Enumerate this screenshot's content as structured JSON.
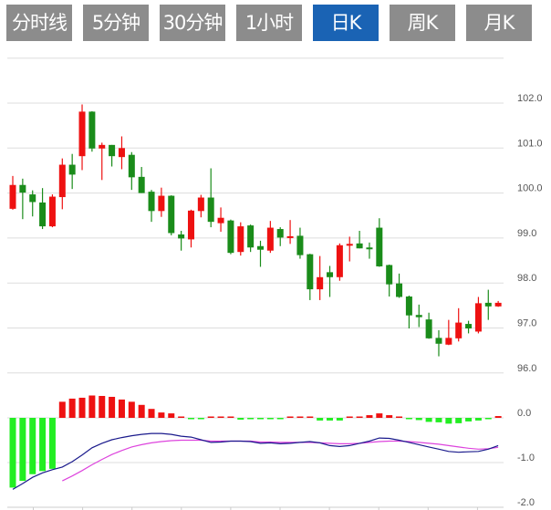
{
  "tabs": [
    {
      "label": "分时线",
      "active": false
    },
    {
      "label": "5分钟",
      "active": false
    },
    {
      "label": "30分钟",
      "active": false
    },
    {
      "label": "1小时",
      "active": false
    },
    {
      "label": "日K",
      "active": true
    },
    {
      "label": "周K",
      "active": false
    },
    {
      "label": "月K",
      "active": false
    }
  ],
  "colors": {
    "up": "#ee1111",
    "down": "#1a8c1a",
    "hist_up": "#ee1111",
    "hist_down": "#22ee22",
    "dif": "#1a1a8c",
    "dea": "#dd44dd",
    "tab": "#8c8c8c",
    "tab_active": "#1a63b4"
  },
  "chart_data": [
    {
      "type": "candlestick",
      "y_ticks": [
        "102.0",
        "101.0",
        "100.0",
        "99.0",
        "98.0",
        "97.0",
        "96.0"
      ],
      "ylim": [
        96,
        103
      ],
      "grid": true,
      "candles": [
        [
          99.65,
          100.18,
          100.38,
          99.63
        ],
        [
          100.18,
          100.01,
          100.32,
          99.42
        ],
        [
          99.97,
          99.8,
          100.06,
          99.48
        ],
        [
          99.79,
          99.26,
          100.11,
          99.2
        ],
        [
          99.26,
          99.92,
          99.97,
          99.24
        ],
        [
          99.91,
          100.63,
          100.77,
          99.64
        ],
        [
          100.63,
          100.41,
          100.87,
          100.09
        ],
        [
          100.82,
          101.81,
          101.97,
          100.51
        ],
        [
          101.81,
          100.99,
          101.82,
          100.92
        ],
        [
          100.99,
          101.07,
          101.12,
          100.29
        ],
        [
          101.07,
          100.82,
          101.07,
          100.59
        ],
        [
          100.8,
          101.0,
          101.26,
          100.53
        ],
        [
          100.85,
          100.35,
          100.91,
          100.07
        ],
        [
          100.36,
          100.0,
          100.58,
          100.0
        ],
        [
          100.03,
          99.6,
          100.07,
          99.36
        ],
        [
          99.6,
          99.94,
          100.12,
          99.47
        ],
        [
          99.94,
          99.11,
          99.95,
          99.06
        ],
        [
          99.08,
          98.99,
          99.16,
          98.72
        ],
        [
          98.97,
          99.61,
          99.63,
          98.79
        ],
        [
          99.6,
          99.9,
          99.96,
          99.46
        ],
        [
          99.9,
          99.36,
          100.55,
          99.24
        ],
        [
          99.33,
          99.45,
          99.68,
          99.14
        ],
        [
          99.39,
          98.67,
          99.41,
          98.64
        ],
        [
          98.69,
          99.26,
          99.35,
          98.61
        ],
        [
          99.28,
          98.79,
          99.3,
          98.69
        ],
        [
          98.82,
          98.74,
          98.94,
          98.36
        ],
        [
          98.72,
          99.23,
          99.38,
          98.67
        ],
        [
          99.2,
          99.01,
          99.24,
          98.82
        ],
        [
          99.01,
          99.04,
          99.4,
          98.87
        ],
        [
          99.05,
          98.62,
          99.23,
          98.54
        ],
        [
          98.64,
          97.86,
          98.65,
          97.62
        ],
        [
          97.86,
          98.13,
          98.6,
          97.62
        ],
        [
          98.24,
          98.13,
          98.38,
          97.69
        ],
        [
          98.13,
          98.84,
          98.88,
          98.05
        ],
        [
          98.84,
          98.87,
          99.03,
          98.48
        ],
        [
          98.88,
          98.77,
          99.16,
          98.77
        ],
        [
          98.79,
          98.78,
          98.9,
          98.54
        ],
        [
          99.23,
          98.37,
          99.44,
          98.36
        ],
        [
          98.4,
          97.97,
          98.41,
          97.7
        ],
        [
          97.99,
          97.69,
          98.21,
          97.67
        ],
        [
          97.7,
          97.28,
          97.72,
          96.99
        ],
        [
          97.29,
          97.24,
          97.52,
          97.02
        ],
        [
          97.19,
          96.77,
          97.34,
          96.76
        ],
        [
          96.78,
          96.65,
          96.95,
          96.37
        ],
        [
          96.63,
          96.78,
          97.18,
          96.62
        ],
        [
          96.77,
          97.12,
          97.44,
          96.7
        ],
        [
          97.09,
          96.99,
          97.16,
          96.88
        ],
        [
          96.92,
          97.55,
          97.69,
          96.88
        ],
        [
          97.56,
          97.48,
          97.85,
          97.18
        ],
        [
          97.48,
          97.56,
          97.6,
          97.47
        ]
      ]
    },
    {
      "type": "macd",
      "y_ticks": [
        "0.0",
        "-1.0",
        "-2.0"
      ],
      "ylim": [
        -2,
        0.6
      ],
      "histogram": [
        -1.56,
        -1.41,
        -1.26,
        -1.19,
        -1.14,
        0.36,
        0.43,
        0.45,
        0.5,
        0.49,
        0.47,
        0.41,
        0.36,
        0.29,
        0.2,
        0.12,
        0.1,
        0.02,
        -0.02,
        -0.02,
        0.02,
        0,
        0,
        -0.04,
        -0.03,
        -0.03,
        -0.03,
        -0.02,
        0,
        0.02,
        0,
        -0.06,
        -0.06,
        -0.06,
        0,
        0.03,
        0.06,
        0.1,
        0.06,
        0.02,
        -0.01,
        -0.05,
        -0.09,
        -0.1,
        -0.13,
        -0.12,
        -0.08,
        -0.06,
        -0.01,
        0.04
      ],
      "dif": [
        -1.6,
        -1.47,
        -1.33,
        -1.23,
        -1.16,
        -1.1,
        -0.98,
        -0.83,
        -0.67,
        -0.57,
        -0.49,
        -0.44,
        -0.4,
        -0.37,
        -0.35,
        -0.35,
        -0.37,
        -0.41,
        -0.43,
        -0.49,
        -0.55,
        -0.54,
        -0.52,
        -0.52,
        -0.53,
        -0.57,
        -0.56,
        -0.58,
        -0.57,
        -0.55,
        -0.53,
        -0.56,
        -0.62,
        -0.64,
        -0.62,
        -0.57,
        -0.52,
        -0.45,
        -0.46,
        -0.5,
        -0.55,
        -0.6,
        -0.65,
        -0.7,
        -0.75,
        -0.77,
        -0.76,
        -0.75,
        -0.7,
        -0.62
      ],
      "dea": [
        null,
        null,
        null,
        null,
        null,
        -1.41,
        -1.3,
        -1.18,
        -1.05,
        -0.93,
        -0.82,
        -0.73,
        -0.65,
        -0.6,
        -0.56,
        -0.53,
        -0.51,
        -0.5,
        -0.5,
        -0.5,
        -0.52,
        -0.52,
        -0.52,
        -0.52,
        -0.52,
        -0.54,
        -0.54,
        -0.55,
        -0.55,
        -0.55,
        -0.55,
        -0.56,
        -0.57,
        -0.58,
        -0.58,
        -0.57,
        -0.55,
        -0.53,
        -0.52,
        -0.52,
        -0.53,
        -0.55,
        -0.57,
        -0.59,
        -0.62,
        -0.65,
        -0.68,
        -0.7,
        -0.69,
        -0.66
      ]
    }
  ]
}
